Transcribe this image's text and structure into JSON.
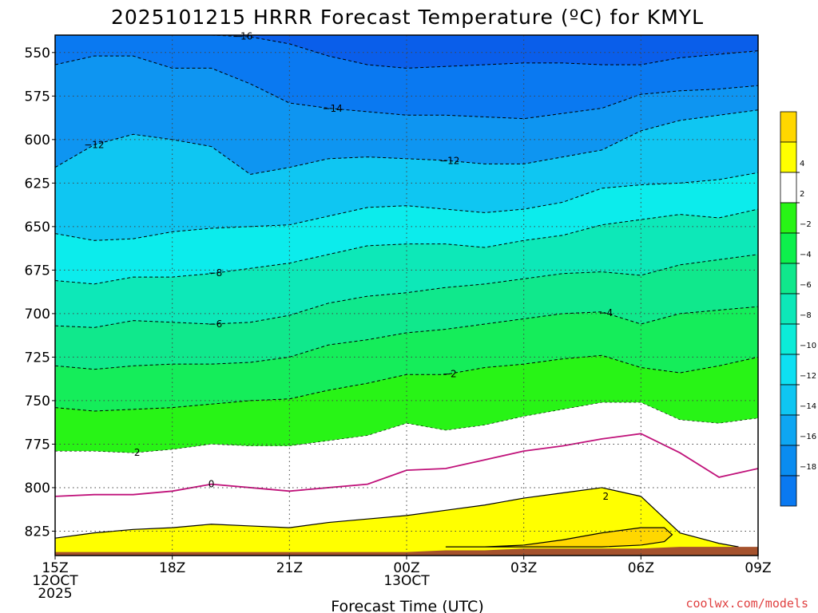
{
  "chart_data": {
    "type": "contour",
    "title": "2025101215 HRRR Forecast Temperature (ºC) for KMYL",
    "xlabel": "Forecast Time (UTC)",
    "ylabel": "",
    "x_tick_labels": [
      {
        "line1": "15Z",
        "line2": "12OCT",
        "line3": "2025"
      },
      {
        "line1": "18Z"
      },
      {
        "line1": "21Z"
      },
      {
        "line1": "00Z",
        "line2": "13OCT"
      },
      {
        "line1": "03Z"
      },
      {
        "line1": "06Z"
      },
      {
        "line1": "09Z"
      }
    ],
    "x_hours": [
      0,
      3,
      6,
      9,
      12,
      15,
      18
    ],
    "y_ticks": [
      550,
      575,
      600,
      625,
      650,
      675,
      700,
      725,
      750,
      775,
      800,
      825
    ],
    "ylim": [
      839,
      540
    ],
    "xlim": [
      0,
      18
    ],
    "ground_top_hpa": [
      837,
      837,
      837,
      837,
      837,
      837,
      837,
      837,
      837,
      837,
      836,
      836,
      835,
      835,
      835,
      835,
      834,
      834,
      834
    ],
    "levels": [
      -20,
      -18,
      -16,
      -14,
      -12,
      -10,
      -8,
      -6,
      -4,
      -2,
      2,
      4,
      6
    ],
    "isotherms": [
      {
        "value": -16,
        "hours": [
          2,
          3,
          4,
          5,
          6,
          7,
          8,
          9,
          10,
          11,
          12,
          13,
          14,
          15,
          16,
          17,
          18
        ],
        "p": [
          540,
          540,
          540,
          541,
          545,
          552,
          557,
          559,
          558,
          557,
          556,
          556,
          557,
          557,
          553,
          551,
          549
        ]
      },
      {
        "value": -14,
        "hours": [
          0,
          1,
          2,
          3,
          4,
          5,
          6,
          7,
          8,
          9,
          10,
          11,
          12,
          13,
          14,
          15,
          16,
          17,
          18
        ],
        "p": [
          557,
          552,
          552,
          559,
          559,
          568,
          579,
          582,
          584,
          586,
          586,
          587,
          588,
          585,
          582,
          574,
          572,
          571,
          569
        ]
      },
      {
        "value": -12,
        "hours": [
          0,
          1,
          2,
          3,
          4,
          5,
          6,
          7,
          8,
          9,
          10,
          11,
          12,
          13,
          14,
          15,
          16,
          17,
          18
        ],
        "p": [
          616,
          603,
          597,
          600,
          604,
          620,
          616,
          611,
          610,
          611,
          612,
          614,
          614,
          610,
          606,
          595,
          589,
          586,
          583
        ]
      },
      {
        "value": -10,
        "hours": [
          0,
          1,
          2,
          3,
          4,
          5,
          6,
          7,
          8,
          9,
          10,
          11,
          12,
          13,
          14,
          15,
          16,
          17,
          18
        ],
        "p": [
          654,
          658,
          657,
          653,
          651,
          650,
          649,
          644,
          639,
          638,
          640,
          642,
          640,
          636,
          628,
          626,
          625,
          623,
          619
        ]
      },
      {
        "value": -8,
        "hours": [
          0,
          1,
          2,
          3,
          4,
          5,
          6,
          7,
          8,
          9,
          10,
          11,
          12,
          13,
          14,
          15,
          16,
          17,
          18
        ],
        "p": [
          681,
          683,
          679,
          679,
          677,
          674,
          671,
          666,
          661,
          660,
          660,
          662,
          658,
          655,
          649,
          646,
          643,
          645,
          640
        ]
      },
      {
        "value": -6,
        "hours": [
          0,
          1,
          2,
          3,
          4,
          5,
          6,
          7,
          8,
          9,
          10,
          11,
          12,
          13,
          14,
          15,
          16,
          17,
          18
        ],
        "p": [
          707,
          708,
          704,
          705,
          706,
          705,
          701,
          694,
          690,
          688,
          685,
          683,
          680,
          677,
          676,
          678,
          672,
          669,
          666
        ]
      },
      {
        "value": -4,
        "hours": [
          0,
          1,
          2,
          3,
          4,
          5,
          6,
          7,
          8,
          9,
          10,
          11,
          12,
          13,
          14,
          15,
          16,
          17,
          18
        ],
        "p": [
          730,
          732,
          730,
          729,
          729,
          728,
          725,
          718,
          715,
          711,
          709,
          706,
          703,
          700,
          699,
          706,
          700,
          698,
          696
        ]
      },
      {
        "value": -2,
        "hours": [
          0,
          1,
          2,
          3,
          4,
          5,
          6,
          7,
          8,
          9,
          10,
          11,
          12,
          13,
          14,
          15,
          16,
          17,
          18
        ],
        "p": [
          754,
          756,
          755,
          754,
          752,
          750,
          749,
          744,
          740,
          735,
          735,
          731,
          729,
          726,
          724,
          731,
          734,
          730,
          725
        ]
      },
      {
        "value": 2,
        "hours": [
          0,
          1,
          2,
          3,
          4,
          5,
          6,
          7,
          8,
          9,
          10,
          11,
          12,
          13,
          14,
          15,
          16,
          17,
          18
        ],
        "p": [
          779,
          779,
          780,
          778,
          775,
          776,
          776,
          773,
          770,
          763,
          767,
          764,
          759,
          755,
          751,
          751,
          761,
          763,
          760
        ]
      },
      {
        "value": 0,
        "hours": [
          0,
          1,
          2,
          3,
          4,
          5,
          6,
          7,
          8,
          9,
          10,
          11,
          12,
          13,
          14,
          15,
          16,
          17,
          18
        ],
        "p": [
          805,
          804,
          804,
          802,
          798,
          800,
          802,
          800,
          798,
          790,
          789,
          784,
          779,
          776,
          772,
          769,
          780,
          794,
          789
        ]
      }
    ]
  },
  "credit": "coolwx.com/models",
  "colors": {
    "c-20": "#0a5eea",
    "c-18": "#0a79f1",
    "c-16": "#0e95f1",
    "c-14": "#0fc6f2",
    "c-12": "#0cecec",
    "c-10": "#0de8b8",
    "c-8": "#10e88c",
    "c-6": "#15ed5a",
    "c-4": "#28f416",
    "c-2": "#ffffff",
    "c2": "#ffff00",
    "c4": "#ffd700",
    "ground": "#a5522d",
    "freezing_line": "#c0127a"
  },
  "colorbar": [
    {
      "label": "",
      "color": "#ffd700"
    },
    {
      "label": "4",
      "color": "#ffff00"
    },
    {
      "label": "2",
      "color": "#ffffff"
    },
    {
      "label": "−2",
      "color": "#28f416"
    },
    {
      "label": "−4",
      "color": "#0df04c"
    },
    {
      "label": "−6",
      "color": "#10e88c"
    },
    {
      "label": "−8",
      "color": "#0de8b8"
    },
    {
      "label": "−10",
      "color": "#0cecd8"
    },
    {
      "label": "−12",
      "color": "#0ee0f2"
    },
    {
      "label": "−14",
      "color": "#0fc6f2"
    },
    {
      "label": "−16",
      "color": "#0ea6f2"
    },
    {
      "label": "−18",
      "color": "#0a8cf0"
    },
    {
      "label": "",
      "color": "#0a79f1"
    }
  ]
}
